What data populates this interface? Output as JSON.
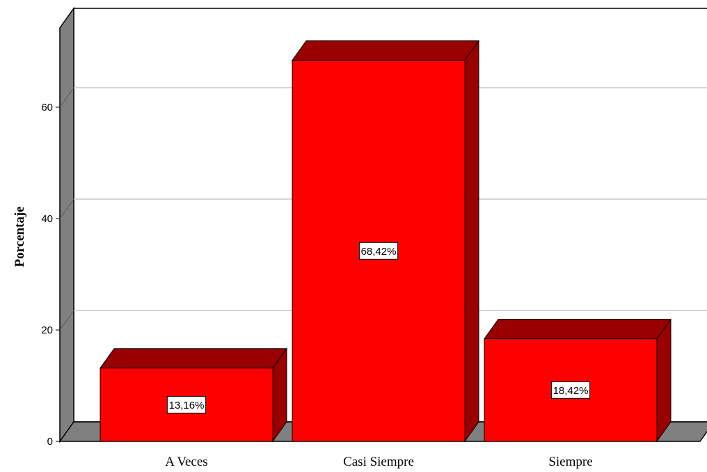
{
  "chart_data": {
    "type": "bar",
    "title": "",
    "xlabel": "",
    "ylabel": "Porcentaje",
    "categories": [
      "A Veces",
      "Casi Siempre",
      "Siempre"
    ],
    "values": [
      13.16,
      68.42,
      18.42
    ],
    "data_labels": [
      "13,16%",
      "68,42%",
      "18,42%"
    ],
    "yticks": [
      0,
      20,
      40,
      60
    ],
    "ylim": [
      0,
      78
    ],
    "grid": true,
    "style": "3d",
    "colors": {
      "bar_front": "#ff0000",
      "bar_side": "#990000",
      "bar_top": "#990000",
      "floor": "#808080",
      "left_wall": "#808080",
      "gridline": "#c8c8c8"
    }
  }
}
